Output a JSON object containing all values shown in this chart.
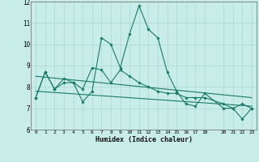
{
  "xlabel": "Humidex (Indice chaleur)",
  "xlim": [
    -0.5,
    23.5
  ],
  "ylim": [
    6,
    12
  ],
  "yticks": [
    6,
    7,
    8,
    9,
    10,
    11,
    12
  ],
  "xtick_positions": [
    0,
    1,
    2,
    3,
    4,
    5,
    6,
    7,
    8,
    9,
    10,
    11,
    12,
    13,
    14,
    15,
    16,
    17,
    18,
    20,
    21,
    22,
    23
  ],
  "xtick_labels": [
    "0",
    "1",
    "2",
    "3",
    "4",
    "5",
    "6",
    "7",
    "8",
    "9",
    "10",
    "11",
    "12",
    "13",
    "14",
    "15",
    "16",
    "17",
    "18",
    "20",
    "21",
    "22",
    "23"
  ],
  "bg_color": "#c8ede8",
  "grid_color": "#a8d8d0",
  "line_color": "#1a7a6a",
  "series": [
    {
      "x": [
        0,
        1,
        2,
        3,
        4,
        5,
        6,
        7,
        8,
        9,
        10,
        11,
        12,
        13,
        14,
        15,
        16,
        17,
        18,
        20,
        21,
        22,
        23
      ],
      "y": [
        7.5,
        8.7,
        7.9,
        8.4,
        8.2,
        7.3,
        7.8,
        10.3,
        10.0,
        8.9,
        10.5,
        11.8,
        10.7,
        10.3,
        8.7,
        7.8,
        7.2,
        7.1,
        7.7,
        7.0,
        7.0,
        6.5,
        7.0
      ],
      "has_markers": true
    },
    {
      "x": [
        0,
        1,
        2,
        3,
        4,
        5,
        6,
        7,
        8,
        9,
        10,
        11,
        12,
        13,
        14,
        15,
        16,
        17,
        18,
        20,
        21,
        22,
        23
      ],
      "y": [
        7.5,
        8.7,
        7.9,
        8.2,
        8.2,
        7.9,
        8.9,
        8.8,
        8.2,
        8.8,
        8.5,
        8.2,
        8.0,
        7.8,
        7.7,
        7.7,
        7.5,
        7.5,
        7.5,
        7.2,
        7.0,
        7.2,
        7.0
      ],
      "has_markers": true
    },
    {
      "x": [
        0,
        23
      ],
      "y": [
        8.5,
        7.5
      ],
      "has_markers": false
    },
    {
      "x": [
        0,
        23
      ],
      "y": [
        7.8,
        7.1
      ],
      "has_markers": false
    }
  ]
}
